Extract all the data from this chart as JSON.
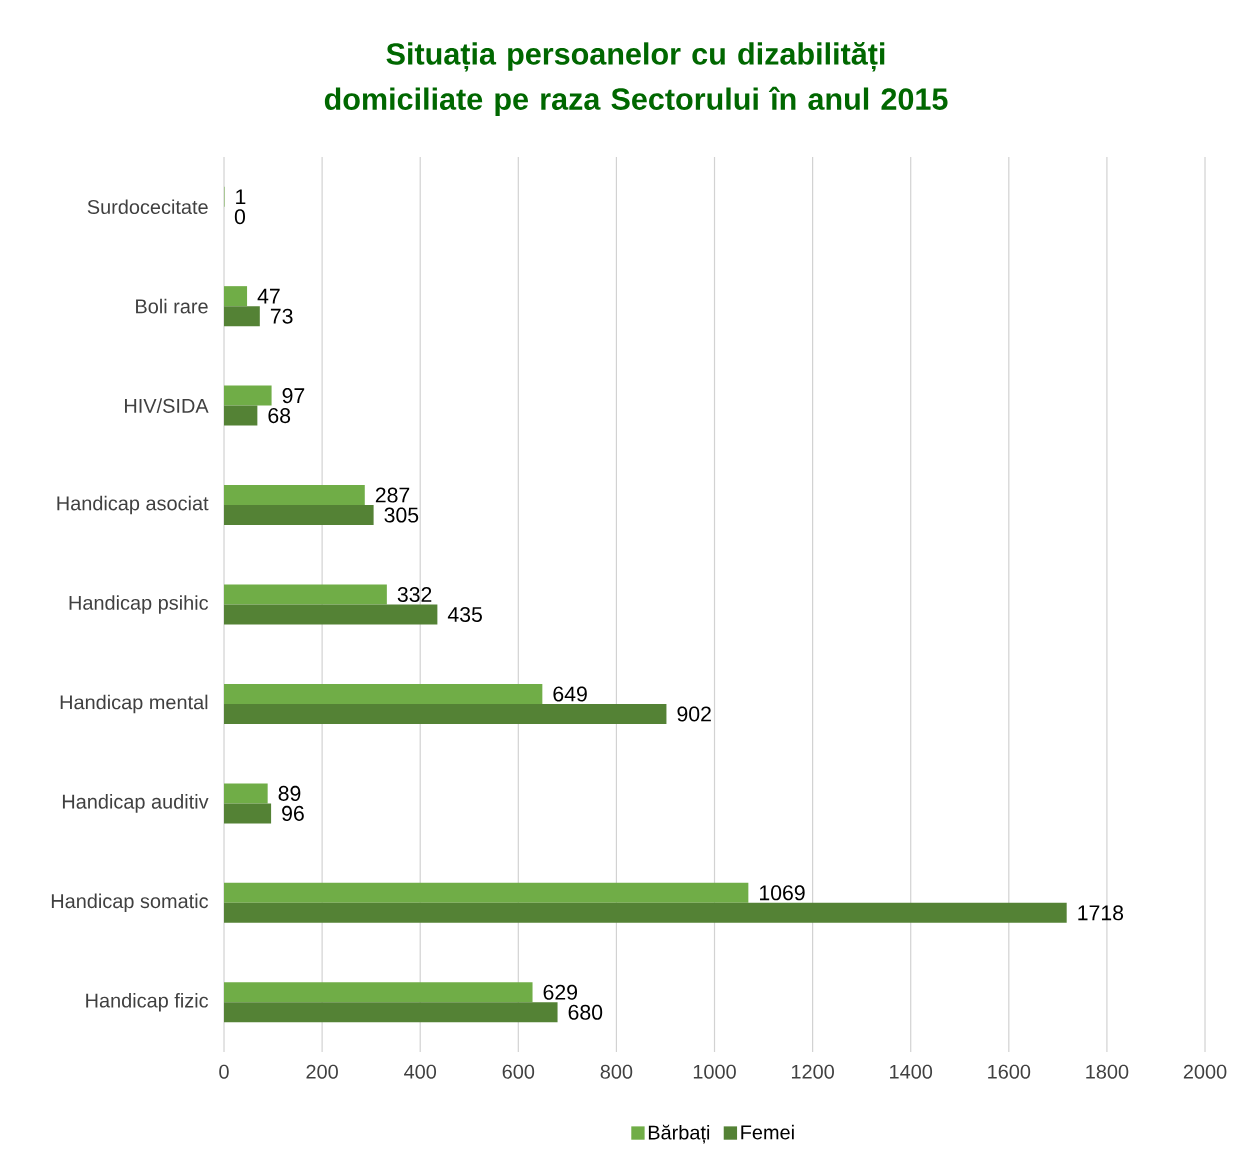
{
  "chart_data": {
    "type": "bar",
    "orientation": "horizontal",
    "title": "Situația persoanelor cu dizabilități domiciliate pe raza Sectorului în anul 2015",
    "categories": [
      "Surdocecitate",
      "Boli rare",
      "HIV/SIDA",
      "Handicap asociat",
      "Handicap psihic",
      "Handicap mental",
      "Handicap auditiv",
      "Handicap somatic",
      "Handicap fizic"
    ],
    "series": [
      {
        "name": "Bărbați",
        "color": "#70ad47",
        "values": [
          1,
          47,
          97,
          287,
          332,
          649,
          89,
          1069,
          629
        ]
      },
      {
        "name": "Femei",
        "color": "#548235",
        "values": [
          0,
          73,
          68,
          305,
          435,
          902,
          96,
          1718,
          680
        ]
      }
    ],
    "xlim": [
      0,
      2000
    ],
    "xticks": [
      0,
      200,
      400,
      600,
      800,
      1000,
      1200,
      1400,
      1600,
      1800,
      2000
    ],
    "grid": "x",
    "legend": "bottom",
    "data_labels": true
  }
}
